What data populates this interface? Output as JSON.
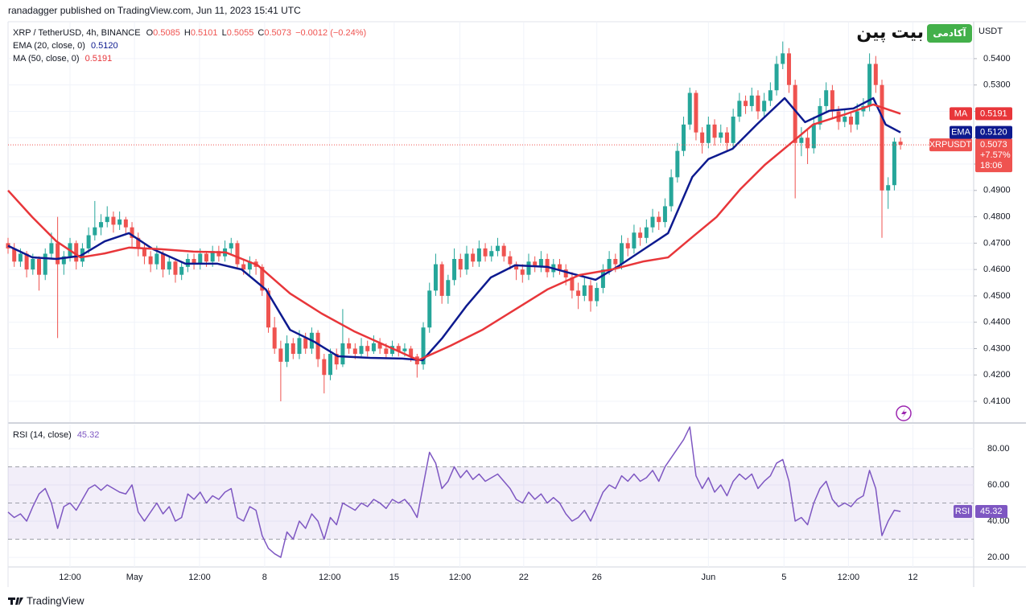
{
  "header": "ranadagger published on TradingView.com, Jun 11, 2023 15:41 UTC",
  "footer": "TradingView",
  "logo": {
    "badge": "آکادمی",
    "name": "بیت پین"
  },
  "chart_data": {
    "type": "candlestick",
    "legend": {
      "symbol": "XRP / TetherUSD, 4h, BINANCE",
      "ohlc_labels": [
        "O",
        "H",
        "L",
        "C"
      ],
      "change": "−0.0012 (−0.24%)"
    },
    "unit": "USDT",
    "up_color": "#26a69a",
    "down_color": "#ef5350",
    "xlim": [
      0,
      155.8
    ],
    "xticks": [
      {
        "value": 10,
        "label": "12:00"
      },
      {
        "value": 20.4,
        "label": "May"
      },
      {
        "value": 30.9,
        "label": "12:00"
      },
      {
        "value": 41.4,
        "label": "8"
      },
      {
        "value": 51.9,
        "label": "12:00"
      },
      {
        "value": 62.3,
        "label": "15"
      },
      {
        "value": 72.9,
        "label": "12:00"
      },
      {
        "value": 83.2,
        "label": "22"
      },
      {
        "value": 95,
        "label": "26"
      },
      {
        "value": 113,
        "label": "Jun"
      },
      {
        "value": 125.2,
        "label": "5"
      },
      {
        "value": 135.6,
        "label": "12:00"
      },
      {
        "value": 146,
        "label": "12"
      }
    ],
    "ylim": [
      0.4036,
      0.5537
    ],
    "yticks": [
      {
        "value": 0.54,
        "label": "0.5400"
      },
      {
        "value": 0.53,
        "label": "0.5300"
      },
      {
        "value": 0.52,
        "label": "0.5200"
      },
      {
        "value": 0.51,
        "label": "0.5100"
      },
      {
        "value": 0.5,
        "label": "0.5000"
      },
      {
        "value": 0.49,
        "label": "0.4900"
      },
      {
        "value": 0.48,
        "label": "0.4800"
      },
      {
        "value": 0.47,
        "label": "0.4700"
      },
      {
        "value": 0.46,
        "label": "0.4600"
      },
      {
        "value": 0.45,
        "label": "0.4500"
      },
      {
        "value": 0.44,
        "label": "0.4400"
      },
      {
        "value": 0.43,
        "label": "0.4300"
      },
      {
        "value": 0.42,
        "label": "0.4200"
      },
      {
        "value": 0.41,
        "label": "0.4100"
      }
    ],
    "grid": true,
    "candles": [
      [
        0.47,
        0.472,
        0.466,
        0.468
      ],
      [
        0.468,
        0.47,
        0.461,
        0.463
      ],
      [
        0.463,
        0.468,
        0.461,
        0.466
      ],
      [
        0.466,
        0.467,
        0.457,
        0.46
      ],
      [
        0.46,
        0.466,
        0.458,
        0.464
      ],
      [
        0.464,
        0.465,
        0.452,
        0.458
      ],
      [
        0.458,
        0.468,
        0.456,
        0.466
      ],
      [
        0.466,
        0.474,
        0.464,
        0.47
      ],
      [
        0.47,
        0.48,
        0.434,
        0.462
      ],
      [
        0.462,
        0.467,
        0.458,
        0.465
      ],
      [
        0.465,
        0.472,
        0.463,
        0.47
      ],
      [
        0.47,
        0.471,
        0.46,
        0.463
      ],
      [
        0.463,
        0.47,
        0.461,
        0.468
      ],
      [
        0.468,
        0.476,
        0.466,
        0.473
      ],
      [
        0.473,
        0.486,
        0.471,
        0.476
      ],
      [
        0.476,
        0.481,
        0.473,
        0.478
      ],
      [
        0.478,
        0.484,
        0.476,
        0.48
      ],
      [
        0.48,
        0.482,
        0.474,
        0.477
      ],
      [
        0.477,
        0.482,
        0.475,
        0.479
      ],
      [
        0.479,
        0.48,
        0.473,
        0.476
      ],
      [
        0.476,
        0.478,
        0.468,
        0.472
      ],
      [
        0.472,
        0.474,
        0.465,
        0.468
      ],
      [
        0.468,
        0.47,
        0.462,
        0.465
      ],
      [
        0.465,
        0.467,
        0.459,
        0.462
      ],
      [
        0.462,
        0.469,
        0.46,
        0.466
      ],
      [
        0.466,
        0.467,
        0.457,
        0.46
      ],
      [
        0.46,
        0.465,
        0.458,
        0.463
      ],
      [
        0.463,
        0.464,
        0.455,
        0.458
      ],
      [
        0.458,
        0.463,
        0.456,
        0.461
      ],
      [
        0.461,
        0.466,
        0.459,
        0.464
      ],
      [
        0.464,
        0.466,
        0.46,
        0.462
      ],
      [
        0.462,
        0.468,
        0.46,
        0.466
      ],
      [
        0.466,
        0.467,
        0.461,
        0.463
      ],
      [
        0.463,
        0.469,
        0.461,
        0.467
      ],
      [
        0.467,
        0.469,
        0.463,
        0.465
      ],
      [
        0.465,
        0.471,
        0.463,
        0.468
      ],
      [
        0.468,
        0.472,
        0.466,
        0.47
      ],
      [
        0.47,
        0.471,
        0.46,
        0.462
      ],
      [
        0.462,
        0.464,
        0.458,
        0.46
      ],
      [
        0.46,
        0.465,
        0.458,
        0.463
      ],
      [
        0.463,
        0.464,
        0.458,
        0.461
      ],
      [
        0.461,
        0.462,
        0.45,
        0.452
      ],
      [
        0.452,
        0.453,
        0.436,
        0.438
      ],
      [
        0.438,
        0.442,
        0.428,
        0.43
      ],
      [
        0.43,
        0.433,
        0.41,
        0.425
      ],
      [
        0.425,
        0.435,
        0.423,
        0.432
      ],
      [
        0.432,
        0.434,
        0.426,
        0.428
      ],
      [
        0.428,
        0.437,
        0.426,
        0.434
      ],
      [
        0.434,
        0.436,
        0.428,
        0.43
      ],
      [
        0.43,
        0.438,
        0.428,
        0.436
      ],
      [
        0.436,
        0.437,
        0.423,
        0.426
      ],
      [
        0.426,
        0.428,
        0.413,
        0.42
      ],
      [
        0.42,
        0.43,
        0.418,
        0.428
      ],
      [
        0.428,
        0.43,
        0.422,
        0.424
      ],
      [
        0.424,
        0.445,
        0.423,
        0.432
      ],
      [
        0.432,
        0.434,
        0.428,
        0.43
      ],
      [
        0.43,
        0.432,
        0.426,
        0.428
      ],
      [
        0.428,
        0.434,
        0.427,
        0.431
      ],
      [
        0.431,
        0.433,
        0.427,
        0.429
      ],
      [
        0.429,
        0.435,
        0.428,
        0.432
      ],
      [
        0.432,
        0.434,
        0.428,
        0.43
      ],
      [
        0.43,
        0.432,
        0.426,
        0.428
      ],
      [
        0.428,
        0.433,
        0.427,
        0.431
      ],
      [
        0.431,
        0.432,
        0.427,
        0.429
      ],
      [
        0.429,
        0.432,
        0.427,
        0.43
      ],
      [
        0.43,
        0.431,
        0.425,
        0.427
      ],
      [
        0.427,
        0.428,
        0.419,
        0.424
      ],
      [
        0.424,
        0.44,
        0.422,
        0.438
      ],
      [
        0.438,
        0.455,
        0.436,
        0.452
      ],
      [
        0.452,
        0.466,
        0.45,
        0.462
      ],
      [
        0.462,
        0.463,
        0.447,
        0.45
      ],
      [
        0.45,
        0.458,
        0.447,
        0.456
      ],
      [
        0.456,
        0.468,
        0.454,
        0.464
      ],
      [
        0.464,
        0.466,
        0.457,
        0.46
      ],
      [
        0.46,
        0.469,
        0.458,
        0.466
      ],
      [
        0.466,
        0.468,
        0.461,
        0.463
      ],
      [
        0.463,
        0.471,
        0.461,
        0.468
      ],
      [
        0.468,
        0.47,
        0.463,
        0.465
      ],
      [
        0.465,
        0.469,
        0.463,
        0.467
      ],
      [
        0.467,
        0.472,
        0.465,
        0.469
      ],
      [
        0.469,
        0.47,
        0.463,
        0.465
      ],
      [
        0.465,
        0.467,
        0.46,
        0.462
      ],
      [
        0.462,
        0.463,
        0.456,
        0.46
      ],
      [
        0.46,
        0.462,
        0.455,
        0.458
      ],
      [
        0.458,
        0.466,
        0.456,
        0.463
      ],
      [
        0.463,
        0.465,
        0.459,
        0.461
      ],
      [
        0.461,
        0.467,
        0.459,
        0.464
      ],
      [
        0.464,
        0.466,
        0.457,
        0.459
      ],
      [
        0.459,
        0.464,
        0.457,
        0.462
      ],
      [
        0.462,
        0.464,
        0.458,
        0.46
      ],
      [
        0.46,
        0.462,
        0.454,
        0.457
      ],
      [
        0.457,
        0.459,
        0.449,
        0.452
      ],
      [
        0.452,
        0.455,
        0.445,
        0.45
      ],
      [
        0.45,
        0.457,
        0.448,
        0.454
      ],
      [
        0.454,
        0.456,
        0.444,
        0.448
      ],
      [
        0.448,
        0.455,
        0.446,
        0.453
      ],
      [
        0.453,
        0.462,
        0.451,
        0.46
      ],
      [
        0.46,
        0.467,
        0.458,
        0.464
      ],
      [
        0.464,
        0.466,
        0.459,
        0.462
      ],
      [
        0.462,
        0.473,
        0.46,
        0.47
      ],
      [
        0.47,
        0.472,
        0.465,
        0.468
      ],
      [
        0.468,
        0.477,
        0.466,
        0.474
      ],
      [
        0.474,
        0.476,
        0.469,
        0.472
      ],
      [
        0.472,
        0.479,
        0.47,
        0.476
      ],
      [
        0.476,
        0.483,
        0.474,
        0.48
      ],
      [
        0.48,
        0.482,
        0.475,
        0.478
      ],
      [
        0.478,
        0.487,
        0.476,
        0.484
      ],
      [
        0.484,
        0.498,
        0.482,
        0.495
      ],
      [
        0.495,
        0.508,
        0.493,
        0.505
      ],
      [
        0.505,
        0.518,
        0.503,
        0.515
      ],
      [
        0.515,
        0.529,
        0.513,
        0.527
      ],
      [
        0.527,
        0.528,
        0.509,
        0.512
      ],
      [
        0.512,
        0.514,
        0.504,
        0.508
      ],
      [
        0.508,
        0.518,
        0.506,
        0.515
      ],
      [
        0.515,
        0.517,
        0.507,
        0.51
      ],
      [
        0.51,
        0.515,
        0.508,
        0.512
      ],
      [
        0.512,
        0.514,
        0.505,
        0.508
      ],
      [
        0.508,
        0.521,
        0.506,
        0.518
      ],
      [
        0.518,
        0.527,
        0.516,
        0.524
      ],
      [
        0.524,
        0.526,
        0.519,
        0.522
      ],
      [
        0.522,
        0.529,
        0.52,
        0.526
      ],
      [
        0.526,
        0.528,
        0.517,
        0.52
      ],
      [
        0.52,
        0.527,
        0.518,
        0.524
      ],
      [
        0.524,
        0.531,
        0.522,
        0.528
      ],
      [
        0.528,
        0.541,
        0.526,
        0.538
      ],
      [
        0.538,
        0.5465,
        0.536,
        0.542
      ],
      [
        0.542,
        0.544,
        0.527,
        0.53
      ],
      [
        0.53,
        0.532,
        0.487,
        0.508
      ],
      [
        0.508,
        0.514,
        0.503,
        0.51
      ],
      [
        0.51,
        0.513,
        0.5,
        0.506
      ],
      [
        0.506,
        0.518,
        0.504,
        0.515
      ],
      [
        0.515,
        0.525,
        0.513,
        0.522
      ],
      [
        0.522,
        0.531,
        0.52,
        0.528
      ],
      [
        0.528,
        0.53,
        0.517,
        0.52
      ],
      [
        0.52,
        0.522,
        0.513,
        0.516
      ],
      [
        0.516,
        0.521,
        0.514,
        0.518
      ],
      [
        0.518,
        0.52,
        0.512,
        0.515
      ],
      [
        0.515,
        0.523,
        0.513,
        0.52
      ],
      [
        0.52,
        0.525,
        0.518,
        0.522
      ],
      [
        0.522,
        0.542,
        0.52,
        0.538
      ],
      [
        0.538,
        0.541,
        0.527,
        0.53
      ],
      [
        0.53,
        0.532,
        0.472,
        0.49
      ],
      [
        0.49,
        0.495,
        0.483,
        0.492
      ],
      [
        0.492,
        0.51,
        0.49,
        0.5085
      ],
      [
        0.5085,
        0.5101,
        0.5055,
        0.5073
      ]
    ],
    "last_price": {
      "name": "XRPUSDT",
      "value": 0.5073,
      "change": "+7.57%",
      "countdown": "18:06",
      "color": "#ef5350"
    },
    "series": [
      {
        "name": "EMA (20, close, 0)",
        "tag": "EMA",
        "color": "#0d1a8f",
        "price_label": {
          "value": 0.512,
          "label": "0.5120"
        },
        "x": [
          0,
          3.9,
          7.8,
          11.7,
          15.6,
          19.5,
          23.4,
          28.6,
          33.8,
          37.7,
          41.6,
          45.5,
          49.4,
          53.2,
          58.4,
          63.6,
          66.9,
          70.1,
          74,
          77.9,
          81.8,
          87,
          90.9,
          94.8,
          98.7,
          102.6,
          106.5,
          110.4,
          113,
          116.9,
          120.8,
          125.3,
          128.6,
          132.5,
          136.4,
          139.6,
          141.6,
          144
        ],
        "values": [
          0.469,
          0.4646,
          0.464,
          0.4652,
          0.4707,
          0.4738,
          0.4677,
          0.4622,
          0.4622,
          0.46,
          0.4524,
          0.4371,
          0.4326,
          0.4271,
          0.4265,
          0.4262,
          0.4256,
          0.4341,
          0.4463,
          0.457,
          0.4616,
          0.461,
          0.4585,
          0.4561,
          0.4616,
          0.4677,
          0.4738,
          0.4951,
          0.5019,
          0.5058,
          0.515,
          0.525,
          0.5159,
          0.5202,
          0.5211,
          0.525,
          0.515,
          0.512
        ]
      },
      {
        "name": "MA (50, close, 0)",
        "tag": "MA",
        "color": "#e8363a",
        "price_label": {
          "value": 0.5191,
          "label": "0.5191"
        },
        "x": [
          0,
          3.9,
          7.8,
          11.7,
          15.6,
          19.5,
          24.7,
          29.9,
          35.1,
          40.3,
          45.5,
          50.6,
          55.8,
          61,
          66.2,
          71.4,
          76.6,
          81.8,
          87,
          92.2,
          97.4,
          102.6,
          106.5,
          110.4,
          114.3,
          118.2,
          122.1,
          126,
          129.9,
          135.1,
          139.6,
          144
        ],
        "values": [
          0.49,
          0.4799,
          0.4707,
          0.4646,
          0.4661,
          0.4683,
          0.4677,
          0.4668,
          0.4665,
          0.4616,
          0.4509,
          0.4433,
          0.4366,
          0.4311,
          0.4256,
          0.4311,
          0.4372,
          0.4448,
          0.4524,
          0.4579,
          0.46,
          0.4631,
          0.4646,
          0.4723,
          0.4799,
          0.4906,
          0.4997,
          0.5073,
          0.515,
          0.5189,
          0.5226,
          0.5191
        ]
      }
    ],
    "rsi": {
      "type": "line",
      "name": "RSI (14, close)",
      "tag": "RSI",
      "color": "#7e57c2",
      "last": {
        "value": 45.32,
        "label": "45.32"
      },
      "ylim": [
        14.7,
        92.4
      ],
      "yticks": [
        {
          "value": 80,
          "label": "80.00"
        },
        {
          "value": 60,
          "label": "60.00"
        },
        {
          "value": 40,
          "label": "40.00"
        },
        {
          "value": 20,
          "label": "20.00"
        }
      ],
      "levels": [
        70,
        50,
        30
      ],
      "values": [
        45,
        42,
        44,
        40,
        48,
        55,
        58,
        50,
        36,
        48,
        50,
        46,
        52,
        58,
        60,
        57,
        60,
        58,
        56,
        55,
        60,
        45,
        40,
        45,
        50,
        44,
        48,
        40,
        42,
        55,
        52,
        56,
        50,
        54,
        52,
        56,
        58,
        42,
        40,
        48,
        46,
        32,
        25,
        22,
        20,
        34,
        30,
        40,
        36,
        44,
        40,
        30,
        42,
        38,
        50,
        48,
        46,
        50,
        48,
        52,
        50,
        47,
        52,
        50,
        52,
        48,
        42,
        60,
        78,
        72,
        58,
        62,
        70,
        64,
        68,
        63,
        66,
        62,
        64,
        66,
        62,
        58,
        52,
        50,
        56,
        52,
        55,
        50,
        53,
        50,
        44,
        40,
        42,
        46,
        40,
        48,
        56,
        60,
        58,
        65,
        62,
        66,
        62,
        64,
        68,
        62,
        70,
        75,
        80,
        85,
        92,
        65,
        58,
        64,
        56,
        60,
        54,
        62,
        66,
        63,
        66,
        58,
        62,
        65,
        72,
        74,
        62,
        40,
        42,
        38,
        50,
        58,
        62,
        52,
        48,
        50,
        48,
        52,
        54,
        68,
        58,
        32,
        40,
        46,
        45.32
      ]
    }
  }
}
